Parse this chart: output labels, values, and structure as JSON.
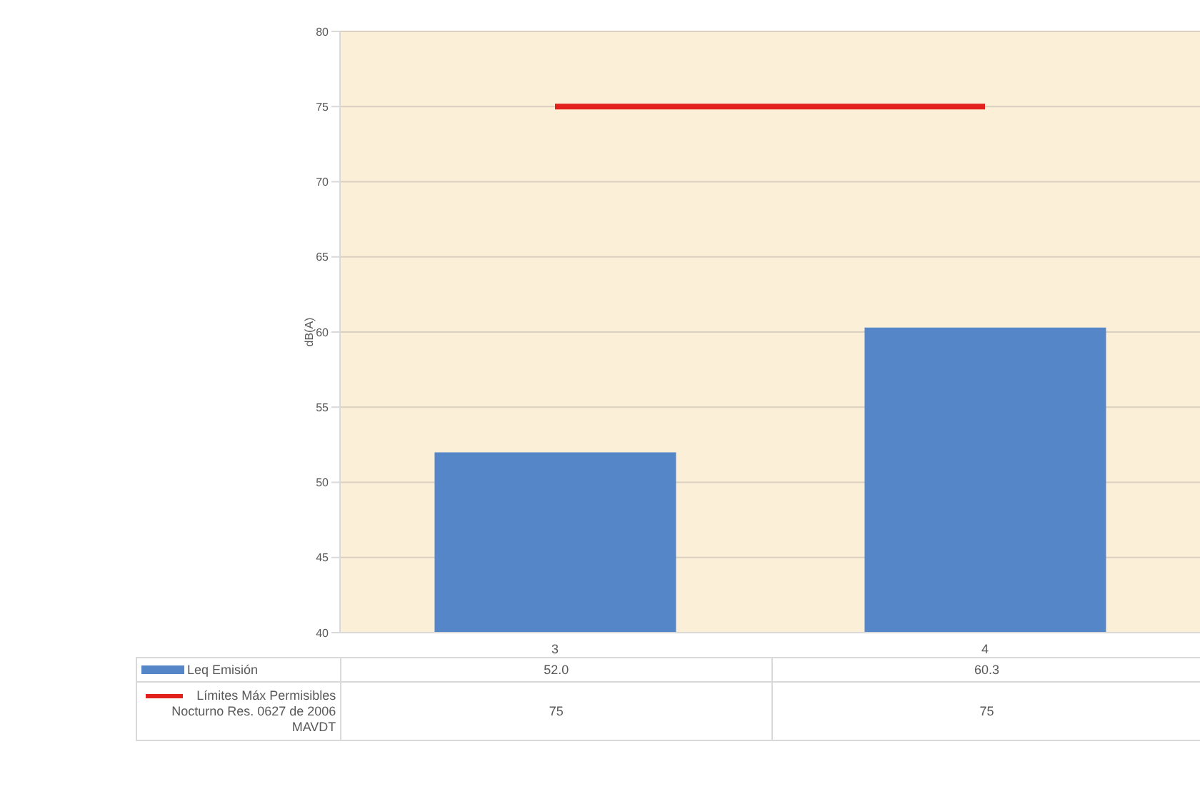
{
  "chart_data": {
    "type": "bar",
    "ylabel": "dB(A)",
    "categories": [
      "3",
      "4"
    ],
    "ylim": [
      40,
      80
    ],
    "yticks": [
      40,
      45,
      50,
      55,
      60,
      65,
      70,
      75,
      80
    ],
    "grid": "y",
    "legend": "bottom",
    "series": [
      {
        "name": "Leq Emisión",
        "color": "#5586c8",
        "values": [
          52.0,
          60.3
        ],
        "value_labels": [
          "52.0",
          "60.3"
        ]
      },
      {
        "name": "Límites Máx Permisibles Nocturno Res. 0627 de 2006 MAVDT",
        "type": "line",
        "color": "#e3211c",
        "values": [
          75,
          75
        ],
        "value_labels": [
          "75",
          "75"
        ]
      }
    ]
  }
}
